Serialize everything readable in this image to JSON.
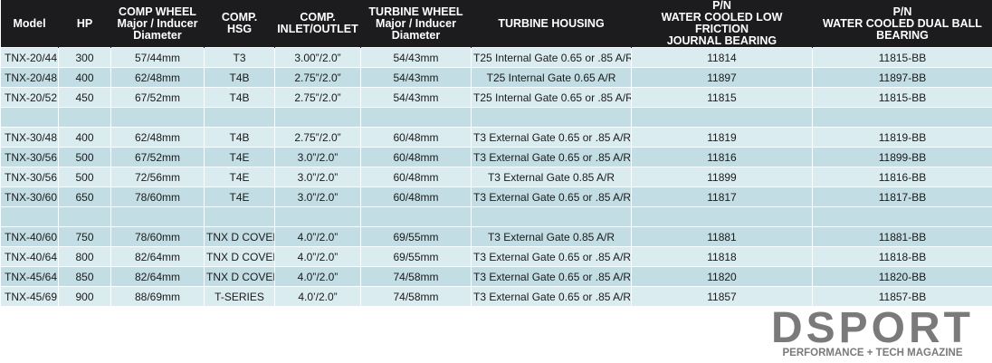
{
  "headers": [
    "Model",
    "HP",
    "COMP WHEEL\nMajor / Inducer\nDiameter",
    "COMP.\nHSG",
    "COMP.\nINLET/OUTLET",
    "TURBINE WHEEL\nMajor / Inducer\nDiameter",
    "TURBINE HOUSING",
    "P/N\nWATER COOLED LOW FRICTION\nJOURNAL BEARING",
    "P/N\nWATER COOLED DUAL BALL\nBEARING"
  ],
  "rows": [
    [
      "TNX-20/44",
      "300",
      "57/44mm",
      "T3",
      "3.00”/2.0”",
      "54/43mm",
      "T25 Internal Gate 0.65 or .85 A/R",
      "11814",
      "11815-BB"
    ],
    [
      "TNX-20/48",
      "400",
      "62/48mm",
      "T4B",
      "2.75”/2.0”",
      "54/43mm",
      "T25 Internal Gate 0.65 A/R",
      "11897",
      "11897-BB"
    ],
    [
      "TNX-20/52",
      "450",
      "67/52mm",
      "T4B",
      "2.75”/2.0”",
      "54/43mm",
      "T25 Internal Gate 0.65 or .85 A/R",
      "11815",
      "11815-BB"
    ],
    [
      "",
      "",
      "",
      "",
      "",
      "",
      "",
      "",
      ""
    ],
    [
      "TNX-30/48",
      "400",
      "62/48mm",
      "T4B",
      "2.75”/2.0”",
      "60/48mm",
      "T3 External Gate 0.65 or .85 A/R",
      "11819",
      "11819-BB"
    ],
    [
      "TNX-30/56",
      "500",
      "67/52mm",
      "T4E",
      "3.0”/2.0”",
      "60/48mm",
      "T3 External Gate 0.65 or .85 A/R",
      "11816",
      "11899-BB"
    ],
    [
      "TNX-30/56",
      "500",
      "72/56mm",
      "T4E",
      "3.0”/2.0”",
      "60/48mm",
      "T3 External Gate 0.85 A/R",
      "11899",
      "11816-BB"
    ],
    [
      "TNX-30/60",
      "650",
      "78/60mm",
      "T4E",
      "3.0”/2.0”",
      "60/48mm",
      "T3 External Gate 0.65 or .85 A/R",
      "11817",
      "11817-BB"
    ],
    [
      "",
      "",
      "",
      "",
      "",
      "",
      "",
      "",
      ""
    ],
    [
      "TNX-40/60",
      "750",
      "78/60mm",
      "TNX D COVER",
      "4.0”/2.0”",
      "69/55mm",
      "T3 External Gate 0.85 A/R",
      "11881",
      "11881-BB"
    ],
    [
      "TNX-40/64",
      "800",
      "82/64mm",
      "TNX D COVER",
      "4.0”/2.0”",
      "69/55mm",
      "T3 External Gate 0.65 or .85 A/R",
      "11818",
      "11818-BB"
    ],
    [
      "TNX-45/64",
      "850",
      "82/64mm",
      "TNX D COVER",
      "4.0”/2.0”",
      "74/58mm",
      "T3 External Gate 0.65 or .85 A/R",
      "11820",
      "11820-BB"
    ],
    [
      "TNX-45/69",
      "900",
      "88/69mm",
      "T-SERIES",
      "4.0’/2.0”",
      "74/58mm",
      "T3 External Gate 0.65 or .85 A/R",
      "11857",
      "11857-BB"
    ]
  ],
  "logo": {
    "name": "DSPORT",
    "tagline": "PERFORMANCE + TECH MAGAZINE"
  },
  "colors": {
    "header_bg": "#1c1c1e",
    "row_light": "#dbecf0",
    "row_dark": "#c2dde3",
    "logo_gray": "#7a7a7a"
  }
}
